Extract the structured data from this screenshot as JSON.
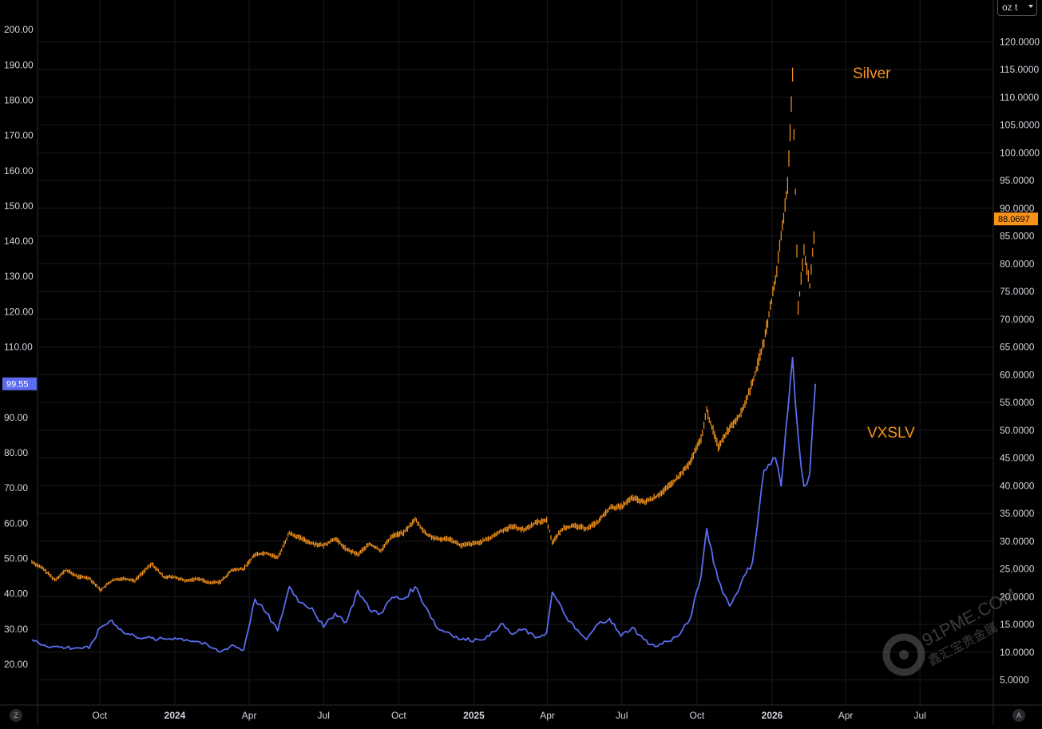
{
  "chart_data": {
    "type": "line",
    "series": [
      {
        "name": "Silver",
        "axis": "right",
        "color": "#f7931a",
        "style": "ohlc",
        "points": [
          [
            "2023-07-10",
            26.3
          ],
          [
            "2023-07-24",
            25.0
          ],
          [
            "2023-08-07",
            23.0
          ],
          [
            "2023-08-21",
            24.8
          ],
          [
            "2023-09-04",
            23.6
          ],
          [
            "2023-09-18",
            23.4
          ],
          [
            "2023-10-02",
            21.2
          ],
          [
            "2023-10-16",
            22.9
          ],
          [
            "2023-10-30",
            23.3
          ],
          [
            "2023-11-13",
            22.9
          ],
          [
            "2023-11-27",
            25.0
          ],
          [
            "2023-12-04",
            25.9
          ],
          [
            "2023-12-18",
            23.6
          ],
          [
            "2024-01-01",
            23.5
          ],
          [
            "2024-01-15",
            22.8
          ],
          [
            "2024-01-29",
            23.3
          ],
          [
            "2024-02-12",
            22.5
          ],
          [
            "2024-02-26",
            22.7
          ],
          [
            "2024-03-11",
            24.8
          ],
          [
            "2024-03-25",
            25.0
          ],
          [
            "2024-04-08",
            27.6
          ],
          [
            "2024-04-22",
            27.9
          ],
          [
            "2024-05-06",
            27.0
          ],
          [
            "2024-05-20",
            31.5
          ],
          [
            "2024-06-03",
            30.5
          ],
          [
            "2024-06-17",
            29.6
          ],
          [
            "2024-07-01",
            29.2
          ],
          [
            "2024-07-15",
            30.5
          ],
          [
            "2024-07-29",
            28.5
          ],
          [
            "2024-08-12",
            27.6
          ],
          [
            "2024-08-26",
            29.5
          ],
          [
            "2024-09-09",
            28.3
          ],
          [
            "2024-09-23",
            31.0
          ],
          [
            "2024-10-07",
            31.5
          ],
          [
            "2024-10-21",
            33.9
          ],
          [
            "2024-11-04",
            31.2
          ],
          [
            "2024-11-18",
            30.3
          ],
          [
            "2024-12-02",
            30.5
          ],
          [
            "2024-12-16",
            29.2
          ],
          [
            "2025-01-06",
            29.7
          ],
          [
            "2025-01-20",
            30.5
          ],
          [
            "2025-02-03",
            31.8
          ],
          [
            "2025-02-17",
            32.7
          ],
          [
            "2025-03-03",
            32.0
          ],
          [
            "2025-03-17",
            33.3
          ],
          [
            "2025-03-31",
            33.8
          ],
          [
            "2025-04-07",
            29.8
          ],
          [
            "2025-04-21",
            32.5
          ],
          [
            "2025-05-05",
            32.7
          ],
          [
            "2025-05-19",
            32.3
          ],
          [
            "2025-06-02",
            33.5
          ],
          [
            "2025-06-16",
            36.0
          ],
          [
            "2025-06-30",
            36.2
          ],
          [
            "2025-07-14",
            37.8
          ],
          [
            "2025-07-28",
            37.0
          ],
          [
            "2025-08-11",
            37.9
          ],
          [
            "2025-08-25",
            39.5
          ],
          [
            "2025-09-08",
            41.5
          ],
          [
            "2025-09-22",
            44.0
          ],
          [
            "2025-10-06",
            48.5
          ],
          [
            "2025-10-13",
            53.5
          ],
          [
            "2025-10-27",
            47.0
          ],
          [
            "2025-11-10",
            50.5
          ],
          [
            "2025-11-24",
            53.0
          ],
          [
            "2025-12-08",
            58.5
          ],
          [
            "2025-12-22",
            66.0
          ],
          [
            "2026-01-05",
            77.0
          ],
          [
            "2026-01-12",
            85.0
          ],
          [
            "2026-01-20",
            94.0
          ],
          [
            "2026-01-26",
            114.0
          ],
          [
            "2026-02-02",
            72.0
          ],
          [
            "2026-02-09",
            82.0
          ],
          [
            "2026-02-16",
            76.0
          ],
          [
            "2026-02-23",
            88.07
          ]
        ],
        "last_value": "88.0697"
      },
      {
        "name": "VXSLV",
        "axis": "left",
        "color": "#5b6cf0",
        "style": "line",
        "points": [
          [
            "2023-07-10",
            27.0
          ],
          [
            "2023-07-24",
            25.5
          ],
          [
            "2023-08-07",
            25.0
          ],
          [
            "2023-08-21",
            24.7
          ],
          [
            "2023-09-04",
            24.7
          ],
          [
            "2023-09-18",
            24.5
          ],
          [
            "2023-10-02",
            30.5
          ],
          [
            "2023-10-16",
            32.5
          ],
          [
            "2023-10-30",
            29.0
          ],
          [
            "2023-11-13",
            28.0
          ],
          [
            "2023-11-27",
            27.5
          ],
          [
            "2023-12-11",
            27.0
          ],
          [
            "2024-01-01",
            27.5
          ],
          [
            "2024-01-15",
            27.0
          ],
          [
            "2024-01-29",
            26.5
          ],
          [
            "2024-02-12",
            25.0
          ],
          [
            "2024-02-26",
            23.5
          ],
          [
            "2024-03-11",
            25.5
          ],
          [
            "2024-03-25",
            24.0
          ],
          [
            "2024-04-08",
            38.5
          ],
          [
            "2024-04-22",
            34.5
          ],
          [
            "2024-05-06",
            29.5
          ],
          [
            "2024-05-20",
            42.0
          ],
          [
            "2024-06-03",
            37.5
          ],
          [
            "2024-06-17",
            36.0
          ],
          [
            "2024-07-01",
            30.5
          ],
          [
            "2024-07-15",
            34.5
          ],
          [
            "2024-07-29",
            32.0
          ],
          [
            "2024-08-12",
            41.0
          ],
          [
            "2024-08-26",
            35.5
          ],
          [
            "2024-09-09",
            34.5
          ],
          [
            "2024-09-23",
            39.0
          ],
          [
            "2024-10-07",
            38.5
          ],
          [
            "2024-10-21",
            42.0
          ],
          [
            "2024-11-04",
            36.0
          ],
          [
            "2024-11-18",
            30.0
          ],
          [
            "2024-12-02",
            29.0
          ],
          [
            "2024-12-16",
            27.0
          ],
          [
            "2025-01-06",
            27.0
          ],
          [
            "2025-01-20",
            28.0
          ],
          [
            "2025-02-03",
            31.5
          ],
          [
            "2025-02-17",
            28.5
          ],
          [
            "2025-03-03",
            30.0
          ],
          [
            "2025-03-17",
            27.5
          ],
          [
            "2025-03-31",
            29.0
          ],
          [
            "2025-04-07",
            40.5
          ],
          [
            "2025-04-21",
            34.5
          ],
          [
            "2025-05-05",
            30.0
          ],
          [
            "2025-05-19",
            27.0
          ],
          [
            "2025-06-02",
            31.5
          ],
          [
            "2025-06-16",
            33.0
          ],
          [
            "2025-06-30",
            28.0
          ],
          [
            "2025-07-14",
            30.5
          ],
          [
            "2025-07-28",
            27.0
          ],
          [
            "2025-08-11",
            25.0
          ],
          [
            "2025-08-25",
            26.5
          ],
          [
            "2025-09-08",
            28.0
          ],
          [
            "2025-09-22",
            32.5
          ],
          [
            "2025-10-06",
            45.0
          ],
          [
            "2025-10-13",
            58.5
          ],
          [
            "2025-10-27",
            44.0
          ],
          [
            "2025-11-10",
            36.5
          ],
          [
            "2025-11-24",
            43.0
          ],
          [
            "2025-12-08",
            49.0
          ],
          [
            "2025-12-22",
            75.0
          ],
          [
            "2026-01-05",
            78.5
          ],
          [
            "2026-01-12",
            70.5
          ],
          [
            "2026-01-26",
            107.0
          ],
          [
            "2026-02-02",
            84.5
          ],
          [
            "2026-02-09",
            70.5
          ],
          [
            "2026-02-16",
            74.0
          ],
          [
            "2026-02-23",
            99.55
          ]
        ],
        "last_value": "99.55"
      }
    ],
    "annotations": [
      "Silver",
      "VXSLV"
    ],
    "left_axis": {
      "ticks": [
        "20.00",
        "30.00",
        "40.00",
        "50.00",
        "60.00",
        "70.00",
        "80.00",
        "90.00",
        "100.00",
        "110.00",
        "120.00",
        "130.00",
        "140.00",
        "150.00",
        "160.00",
        "170.00",
        "180.00",
        "190.00",
        "200.00"
      ],
      "range": [
        14.5,
        215
      ]
    },
    "right_axis": {
      "unit_label": "oz t",
      "ticks": [
        "5.0000",
        "10.0000",
        "15.0000",
        "20.0000",
        "25.0000",
        "30.0000",
        "35.0000",
        "40.0000",
        "45.0000",
        "50.0000",
        "55.0000",
        "60.0000",
        "65.0000",
        "70.0000",
        "75.0000",
        "80.0000",
        "85.0000",
        "90.0000",
        "95.0000",
        "100.0000",
        "105.0000",
        "110.0000",
        "115.0000",
        "120.0000"
      ],
      "range": [
        0.5,
        126
      ]
    },
    "x_axis": {
      "ticks": [
        {
          "label": "Oct",
          "date": "2023-10-01",
          "bold": false
        },
        {
          "label": "2024",
          "date": "2024-01-01",
          "bold": true
        },
        {
          "label": "Apr",
          "date": "2024-04-01",
          "bold": false
        },
        {
          "label": "Jul",
          "date": "2024-07-01",
          "bold": false
        },
        {
          "label": "Oct",
          "date": "2024-10-01",
          "bold": false
        },
        {
          "label": "2025",
          "date": "2025-01-01",
          "bold": true
        },
        {
          "label": "Apr",
          "date": "2025-04-01",
          "bold": false
        },
        {
          "label": "Jul",
          "date": "2025-07-01",
          "bold": false
        },
        {
          "label": "Oct",
          "date": "2025-10-01",
          "bold": false
        },
        {
          "label": "2026",
          "date": "2026-01-01",
          "bold": true
        },
        {
          "label": "Apr",
          "date": "2026-04-01",
          "bold": false
        },
        {
          "label": "Jul",
          "date": "2026-07-01",
          "bold": false
        }
      ],
      "range": [
        "2023-07-02",
        "2026-10-01"
      ]
    },
    "grid": true,
    "background": "#000000"
  },
  "watermark": {
    "text": "91PME.COM",
    "subtext": "鑫汇宝贵金属"
  },
  "corner_buttons": {
    "left": "Z",
    "right": "A"
  }
}
